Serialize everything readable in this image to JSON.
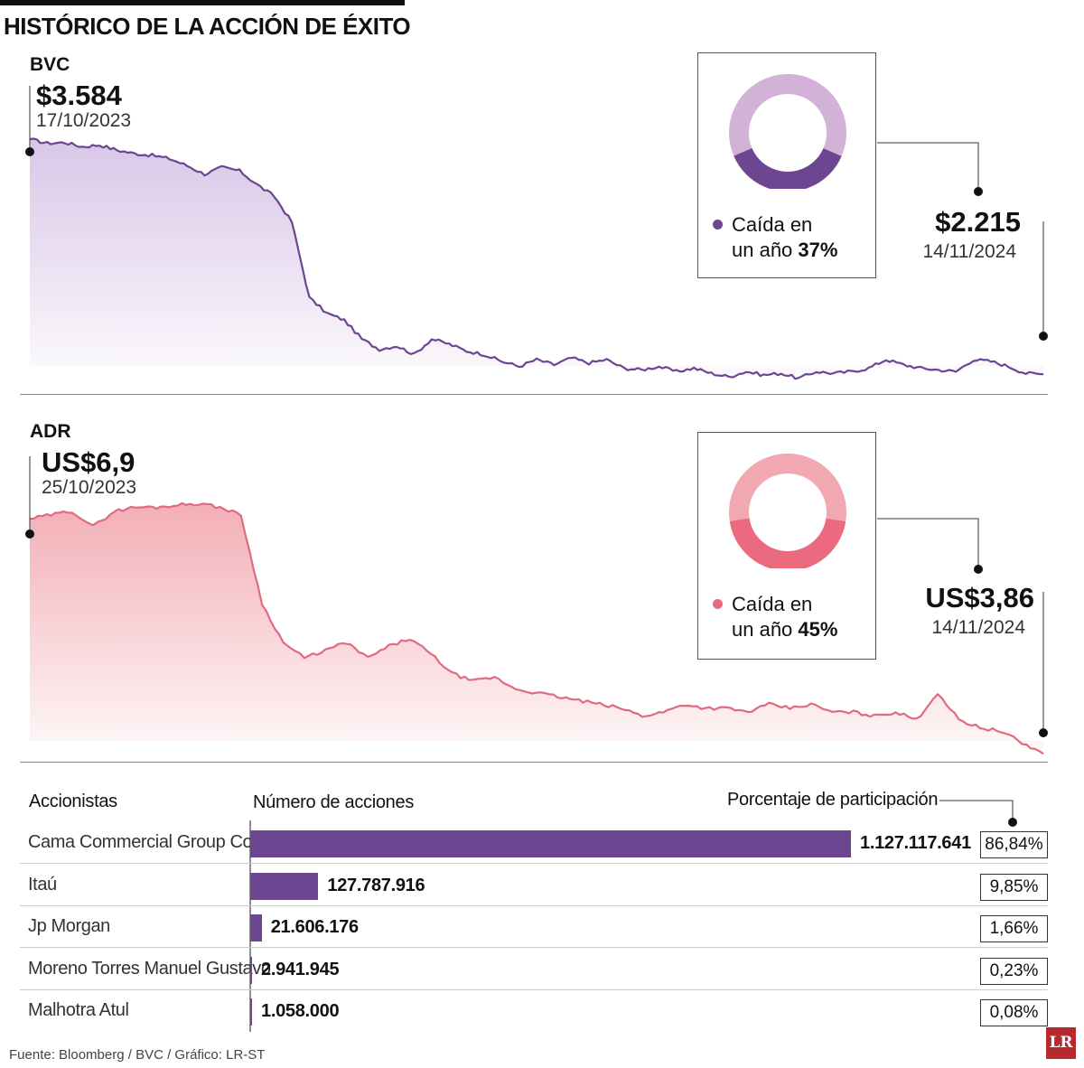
{
  "title": "HISTÓRICO DE LA ACCIÓN DE ÉXITO",
  "source": "Fuente: Bloomberg / BVC / Gráfico: LR-ST",
  "logo": "LR",
  "colors": {
    "bvc_line": "#6c4690",
    "bvc_fill": "#d7c3e6",
    "bvc_donut_light": "#d2b2d6",
    "adr_line": "#e06b80",
    "adr_fill": "#f2aab2",
    "adr_donut_light": "#f2a8b0",
    "adr_donut_dark": "#ec6a7e",
    "bar": "#6c4690"
  },
  "bvc": {
    "label": "BVC",
    "start_value": "$3.584",
    "start_date": "17/10/2023",
    "end_value": "$2.215",
    "end_date": "14/11/2024",
    "drop_text": "Caída en",
    "drop_text2": "un año",
    "drop_pct": "37%",
    "drop_fraction": 0.37
  },
  "adr": {
    "label": "ADR",
    "start_value": "US$6,9",
    "start_date": "25/10/2023",
    "end_value": "US$3,86",
    "end_date": "14/11/2024",
    "drop_text": "Caída en",
    "drop_text2": "un año",
    "drop_pct": "45%",
    "drop_fraction": 0.45
  },
  "table": {
    "col_shareholders": "Accionistas",
    "col_shares": "Número de acciones",
    "col_pct": "Porcentaje de participación",
    "rows": [
      {
        "name": "Cama Commercial Group Corp",
        "shares": "1.127.117.641",
        "pct": "86,84%"
      },
      {
        "name": "Itaú",
        "shares": "127.787.916",
        "pct": "9,85%"
      },
      {
        "name": "Jp Morgan",
        "shares": "21.606.176",
        "pct": "1,66%"
      },
      {
        "name": "Moreno Torres Manuel Gustavo",
        "shares": "2.941.945",
        "pct": "0,23%"
      },
      {
        "name": "Malhotra Atul",
        "shares": "1.058.000",
        "pct": "0,08%"
      }
    ]
  },
  "chart_data": [
    {
      "type": "area",
      "series": [
        {
          "name": "BVC",
          "values": [
            3584,
            3560,
            3565,
            3540,
            3550,
            3520,
            3500,
            3490,
            3470,
            3430,
            3380,
            3420,
            3400,
            3320,
            3250,
            3100,
            2660,
            2570,
            2530,
            2420,
            2360,
            2380,
            2330,
            2420,
            2390,
            2350,
            2330,
            2290,
            2260,
            2300,
            2270,
            2310,
            2280,
            2300,
            2250,
            2240,
            2260,
            2230,
            2250,
            2220,
            2200,
            2230,
            2210,
            2220,
            2190,
            2230,
            2220,
            2230,
            2250,
            2300,
            2270,
            2250,
            2240,
            2230,
            2300,
            2290,
            2260,
            2220,
            2215
          ]
        }
      ],
      "ylim": [
        2100,
        3700
      ]
    },
    {
      "type": "area",
      "series": [
        {
          "name": "ADR",
          "values": [
            6.9,
            6.95,
            7.0,
            6.8,
            7.0,
            7.05,
            7.05,
            7.08,
            7.1,
            7.05,
            6.95,
            5.8,
            5.3,
            5.1,
            5.2,
            5.3,
            5.1,
            5.25,
            5.35,
            5.15,
            4.9,
            4.8,
            4.85,
            4.7,
            4.65,
            4.6,
            4.55,
            4.5,
            4.45,
            4.35,
            4.4,
            4.5,
            4.45,
            4.45,
            4.4,
            4.5,
            4.45,
            4.5,
            4.4,
            4.4,
            4.35,
            4.4,
            4.3,
            4.65,
            4.3,
            4.2,
            4.15,
            4.0,
            3.86
          ]
        }
      ],
      "ylim": [
        3.7,
        7.3
      ]
    },
    {
      "type": "bar",
      "categories": [
        "Cama Commercial Group Corp",
        "Itaú",
        "Jp Morgan",
        "Moreno Torres Manuel Gustavo",
        "Malhotra Atul"
      ],
      "series": [
        {
          "values": [
            1127117641,
            127787916,
            21606176,
            2941945,
            1058000
          ]
        }
      ]
    }
  ]
}
